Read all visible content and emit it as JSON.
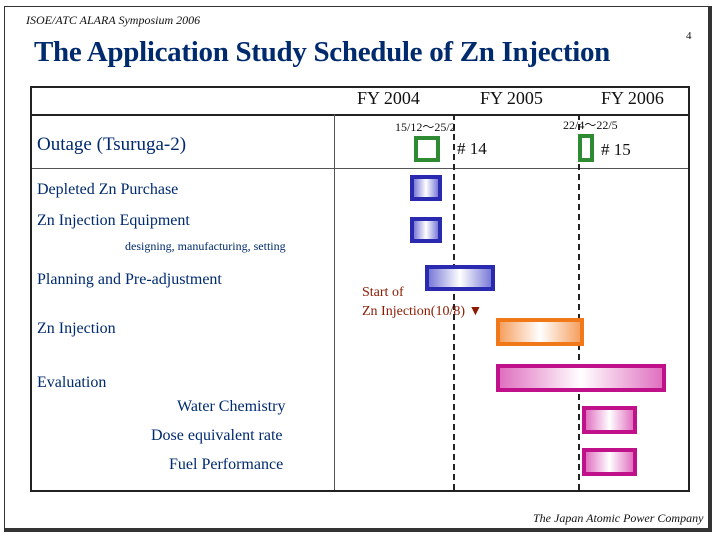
{
  "header": {
    "conference": "ISOE/ATC ALARA Symposium 2006",
    "slide_number": "4"
  },
  "title": "The Application Study Schedule of Zn Injection",
  "years": [
    "FY 2004",
    "FY 2005",
    "FY 2006"
  ],
  "outage": {
    "label": "Outage (Tsuruga-2)",
    "outage1": {
      "dates": "15/12～25/2",
      "number": "# 14"
    },
    "outage2": {
      "dates": "22/4～22/5",
      "number": "# 15"
    }
  },
  "rows": {
    "depleted": "Depleted Zn Purchase",
    "equipment": "Zn Injection Equipment",
    "equipment_sub": "designing, manufacturing, setting",
    "planning": "Planning and Pre-adjustment",
    "injection": "Zn Injection",
    "evaluation": "Evaluation",
    "eval_items": [
      "Water Chemistry",
      "Dose equivalent rate",
      "Fuel Performance"
    ]
  },
  "annotation": {
    "line1": "Start of",
    "line2": "Zn Injection(10/8) ▼"
  },
  "footer": {
    "company": "The Japan Atomic Power Company"
  },
  "colors": {
    "blue": "#2a2ab0",
    "orange": "#f07818",
    "magenta": "#c0108a",
    "green": "#2e8b34",
    "title": "#002a6e"
  }
}
